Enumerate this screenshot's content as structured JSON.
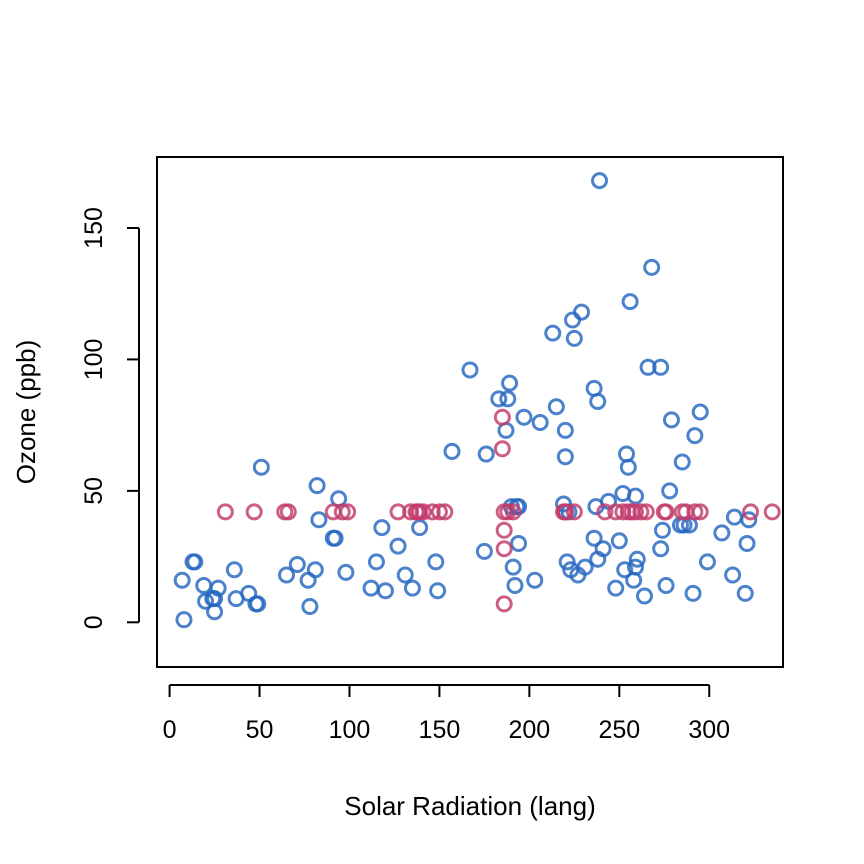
{
  "chart_data": {
    "type": "scatter",
    "title": "",
    "xlabel": "Solar Radiation (lang)",
    "ylabel": "Ozone (ppb)",
    "xlim": [
      -7,
      341
    ],
    "ylim": [
      -17,
      177
    ],
    "xticks": [
      0,
      50,
      100,
      150,
      200,
      250,
      300
    ],
    "yticks": [
      0,
      50,
      100,
      150
    ],
    "grid": false,
    "legend": "none",
    "series": [
      {
        "color": "#2566bf",
        "x": [
          7,
          8,
          13,
          14,
          19,
          20,
          24,
          25,
          25,
          27,
          36,
          37,
          44,
          48,
          49,
          51,
          65,
          71,
          77,
          78,
          81,
          82,
          83,
          91,
          92,
          94,
          98,
          112,
          115,
          118,
          120,
          127,
          131,
          135,
          139,
          148,
          149,
          157,
          167,
          175,
          176,
          183,
          187,
          188,
          189,
          190,
          191,
          192,
          193,
          194,
          194,
          197,
          203,
          206,
          213,
          215,
          219,
          220,
          220,
          221,
          222,
          223,
          224,
          225,
          227,
          229,
          231,
          236,
          236,
          237,
          238,
          238,
          239,
          241,
          244,
          248,
          250,
          252,
          253,
          254,
          255,
          256,
          258,
          259,
          259,
          260,
          264,
          266,
          268,
          273,
          273,
          274,
          276,
          278,
          279,
          284,
          285,
          286,
          289,
          291,
          292,
          295,
          299,
          307,
          313,
          314,
          320,
          321,
          322
        ],
        "y": [
          16,
          1,
          23,
          23,
          14,
          8,
          9,
          4,
          9,
          13,
          20,
          9,
          11,
          7,
          7,
          59,
          18,
          22,
          16,
          6,
          20,
          52,
          39,
          32,
          32,
          47,
          19,
          13,
          23,
          36,
          12,
          29,
          18,
          13,
          36,
          23,
          12,
          65,
          96,
          27,
          64,
          85,
          73,
          85,
          91,
          44,
          21,
          14,
          44,
          44,
          30,
          78,
          16,
          76,
          110,
          82,
          45,
          73,
          63,
          23,
          42,
          20,
          115,
          108,
          18,
          118,
          21,
          89,
          32,
          44,
          84,
          24,
          168,
          28,
          46,
          13,
          31,
          49,
          20,
          64,
          59,
          122,
          16,
          48,
          21,
          24,
          10,
          97,
          135,
          28,
          97,
          35,
          14,
          50,
          77,
          37,
          61,
          37,
          37,
          11,
          71,
          80,
          23,
          34,
          18,
          40,
          11,
          30,
          39
        ]
      },
      {
        "color": "#c13b6b",
        "x": [
          31,
          47,
          64,
          66,
          91,
          96,
          99,
          127,
          134,
          137,
          138,
          139,
          141,
          146,
          150,
          153,
          185,
          185,
          186,
          186,
          186,
          186,
          188,
          191,
          219,
          220,
          220,
          225,
          242,
          248,
          252,
          255,
          257,
          259,
          262,
          265,
          275,
          276,
          285,
          287,
          292,
          295,
          323,
          335
        ],
        "y": [
          42,
          42,
          42,
          42,
          42,
          42,
          42,
          42,
          42,
          42,
          42,
          42,
          42,
          42,
          42,
          42,
          66,
          78,
          35,
          42,
          28,
          7,
          42,
          42,
          42,
          42,
          42,
          42,
          42,
          42,
          42,
          42,
          42,
          42,
          42,
          42,
          42,
          42,
          42,
          42,
          42,
          42,
          42,
          42
        ]
      }
    ]
  }
}
